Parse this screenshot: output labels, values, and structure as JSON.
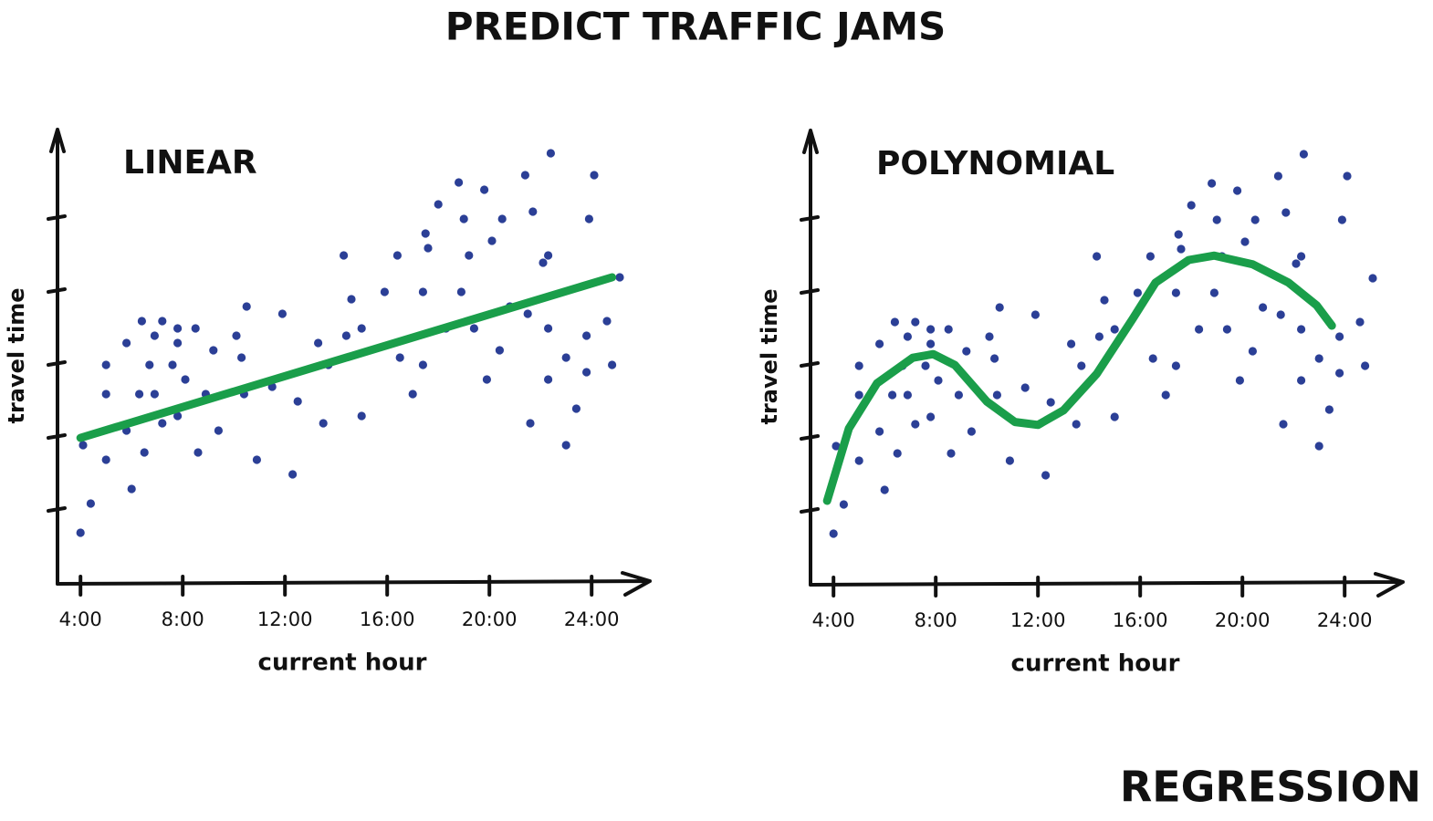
{
  "title": "PREDICT TRAFFIC JAMS",
  "footer": "REGRESSION",
  "chart_data": [
    {
      "type": "scatter",
      "title": "LINEAR",
      "xlabel": "current hour",
      "ylabel": "travel time",
      "color": "#2b3f96",
      "x": [
        4.0,
        4.4,
        4.1,
        5.0,
        5.0,
        5.0,
        5.8,
        5.8,
        6.0,
        6.3,
        6.4,
        6.5,
        6.7,
        6.9,
        6.9,
        7.2,
        7.2,
        7.6,
        7.8,
        7.8,
        7.8,
        8.1,
        8.5,
        8.6,
        8.9,
        9.2,
        9.4,
        10.1,
        10.3,
        10.4,
        10.5,
        10.9,
        11.5,
        11.9,
        12.3,
        12.5,
        13.3,
        13.5,
        13.7,
        14.3,
        14.4,
        14.6,
        15.0,
        15.0,
        15.9,
        16.4,
        16.5,
        17.0,
        17.4,
        17.4,
        17.5,
        17.6,
        18.0,
        18.3,
        18.8,
        18.9,
        19.0,
        19.2,
        19.4,
        19.8,
        19.9,
        20.1,
        20.4,
        20.5,
        20.8,
        21.4,
        21.5,
        21.6,
        21.7,
        22.1,
        22.3,
        22.3,
        22.3,
        22.4,
        23.0,
        23.0,
        23.4,
        23.8,
        23.8,
        23.9,
        24.1,
        24.6,
        24.8,
        25.1
      ],
      "values": [
        0.7,
        1.1,
        1.9,
        3.0,
        2.6,
        1.7,
        3.3,
        2.1,
        1.3,
        2.6,
        3.6,
        1.8,
        3.0,
        3.4,
        2.6,
        3.6,
        2.2,
        3.0,
        3.5,
        3.3,
        2.3,
        2.8,
        3.5,
        1.8,
        2.6,
        3.2,
        2.1,
        3.4,
        3.1,
        2.6,
        3.8,
        1.7,
        2.7,
        3.7,
        1.5,
        2.5,
        3.3,
        2.2,
        3.0,
        4.5,
        3.4,
        3.9,
        2.3,
        3.5,
        4.0,
        4.5,
        3.1,
        2.6,
        3.0,
        4.0,
        4.8,
        4.6,
        5.2,
        3.5,
        5.5,
        4.0,
        5.0,
        4.5,
        3.5,
        5.4,
        2.8,
        4.7,
        3.2,
        5.0,
        3.8,
        5.6,
        3.7,
        2.2,
        5.1,
        4.4,
        3.5,
        2.8,
        4.5,
        5.9,
        3.1,
        1.9,
        2.4,
        3.4,
        2.9,
        5.0,
        5.6,
        3.6,
        3.0,
        4.2
      ],
      "fit": {
        "color": "#1a9e4a",
        "x": [
          4.0,
          24.8
        ],
        "values": [
          2.0,
          4.2
        ]
      },
      "xlim": [
        3.1,
        26.1
      ],
      "ylim": [
        0,
        6
      ],
      "xticks": [
        {
          "value": 4,
          "label": "4:00"
        },
        {
          "value": 8,
          "label": "8:00"
        },
        {
          "value": 12,
          "label": "12:00"
        },
        {
          "value": 16,
          "label": "16:00"
        },
        {
          "value": 20,
          "label": "20:00"
        },
        {
          "value": 24,
          "label": "24:00"
        }
      ],
      "yticks": [
        1,
        2,
        3,
        4,
        5
      ]
    },
    {
      "type": "scatter",
      "title": "POLYNOMIAL",
      "xlabel": "current hour",
      "ylabel": "travel time",
      "color": "#2b3f96",
      "x": [
        4.0,
        4.4,
        4.1,
        5.0,
        5.0,
        5.0,
        5.8,
        5.8,
        6.0,
        6.3,
        6.4,
        6.5,
        6.7,
        6.9,
        6.9,
        7.2,
        7.2,
        7.6,
        7.8,
        7.8,
        7.8,
        8.1,
        8.5,
        8.6,
        8.9,
        9.2,
        9.4,
        10.1,
        10.3,
        10.4,
        10.5,
        10.9,
        11.5,
        11.9,
        12.3,
        12.5,
        13.3,
        13.5,
        13.7,
        14.3,
        14.4,
        14.6,
        15.0,
        15.0,
        15.9,
        16.4,
        16.5,
        17.0,
        17.4,
        17.4,
        17.5,
        17.6,
        18.0,
        18.3,
        18.8,
        18.9,
        19.0,
        19.2,
        19.4,
        19.8,
        19.9,
        20.1,
        20.4,
        20.5,
        20.8,
        21.4,
        21.5,
        21.6,
        21.7,
        22.1,
        22.3,
        22.3,
        22.3,
        22.4,
        23.0,
        23.0,
        23.4,
        23.8,
        23.8,
        23.9,
        24.1,
        24.6,
        24.8,
        25.1
      ],
      "values": [
        0.7,
        1.1,
        1.9,
        3.0,
        2.6,
        1.7,
        3.3,
        2.1,
        1.3,
        2.6,
        3.6,
        1.8,
        3.0,
        3.4,
        2.6,
        3.6,
        2.2,
        3.0,
        3.5,
        3.3,
        2.3,
        2.8,
        3.5,
        1.8,
        2.6,
        3.2,
        2.1,
        3.4,
        3.1,
        2.6,
        3.8,
        1.7,
        2.7,
        3.7,
        1.5,
        2.5,
        3.3,
        2.2,
        3.0,
        4.5,
        3.4,
        3.9,
        2.3,
        3.5,
        4.0,
        4.5,
        3.1,
        2.6,
        3.0,
        4.0,
        4.8,
        4.6,
        5.2,
        3.5,
        5.5,
        4.0,
        5.0,
        4.5,
        3.5,
        5.4,
        2.8,
        4.7,
        3.2,
        5.0,
        3.8,
        5.6,
        3.7,
        2.2,
        5.1,
        4.4,
        3.5,
        2.8,
        4.5,
        5.9,
        3.1,
        1.9,
        2.4,
        3.4,
        2.9,
        5.0,
        5.6,
        3.6,
        3.0,
        4.2
      ],
      "fit": {
        "color": "#1a9e4a",
        "x": [
          3.75,
          4.6,
          5.7,
          7.1,
          7.9,
          8.75,
          10.0,
          11.1,
          12.0,
          13.0,
          14.3,
          15.7,
          16.6,
          17.9,
          18.9,
          20.4,
          21.8,
          22.9,
          23.5
        ],
        "values": [
          1.15,
          2.14,
          2.76,
          3.11,
          3.16,
          3.01,
          2.51,
          2.23,
          2.19,
          2.39,
          2.89,
          3.64,
          4.14,
          4.45,
          4.51,
          4.39,
          4.14,
          3.83,
          3.55
        ]
      },
      "xlim": [
        3.1,
        26.1
      ],
      "ylim": [
        0,
        6
      ],
      "xticks": [
        {
          "value": 4,
          "label": "4:00"
        },
        {
          "value": 8,
          "label": "8:00"
        },
        {
          "value": 12,
          "label": "12:00"
        },
        {
          "value": 16,
          "label": "16:00"
        },
        {
          "value": 20,
          "label": "20:00"
        },
        {
          "value": 24,
          "label": "24:00"
        }
      ],
      "yticks": [
        1,
        2,
        3,
        4,
        5
      ]
    }
  ]
}
